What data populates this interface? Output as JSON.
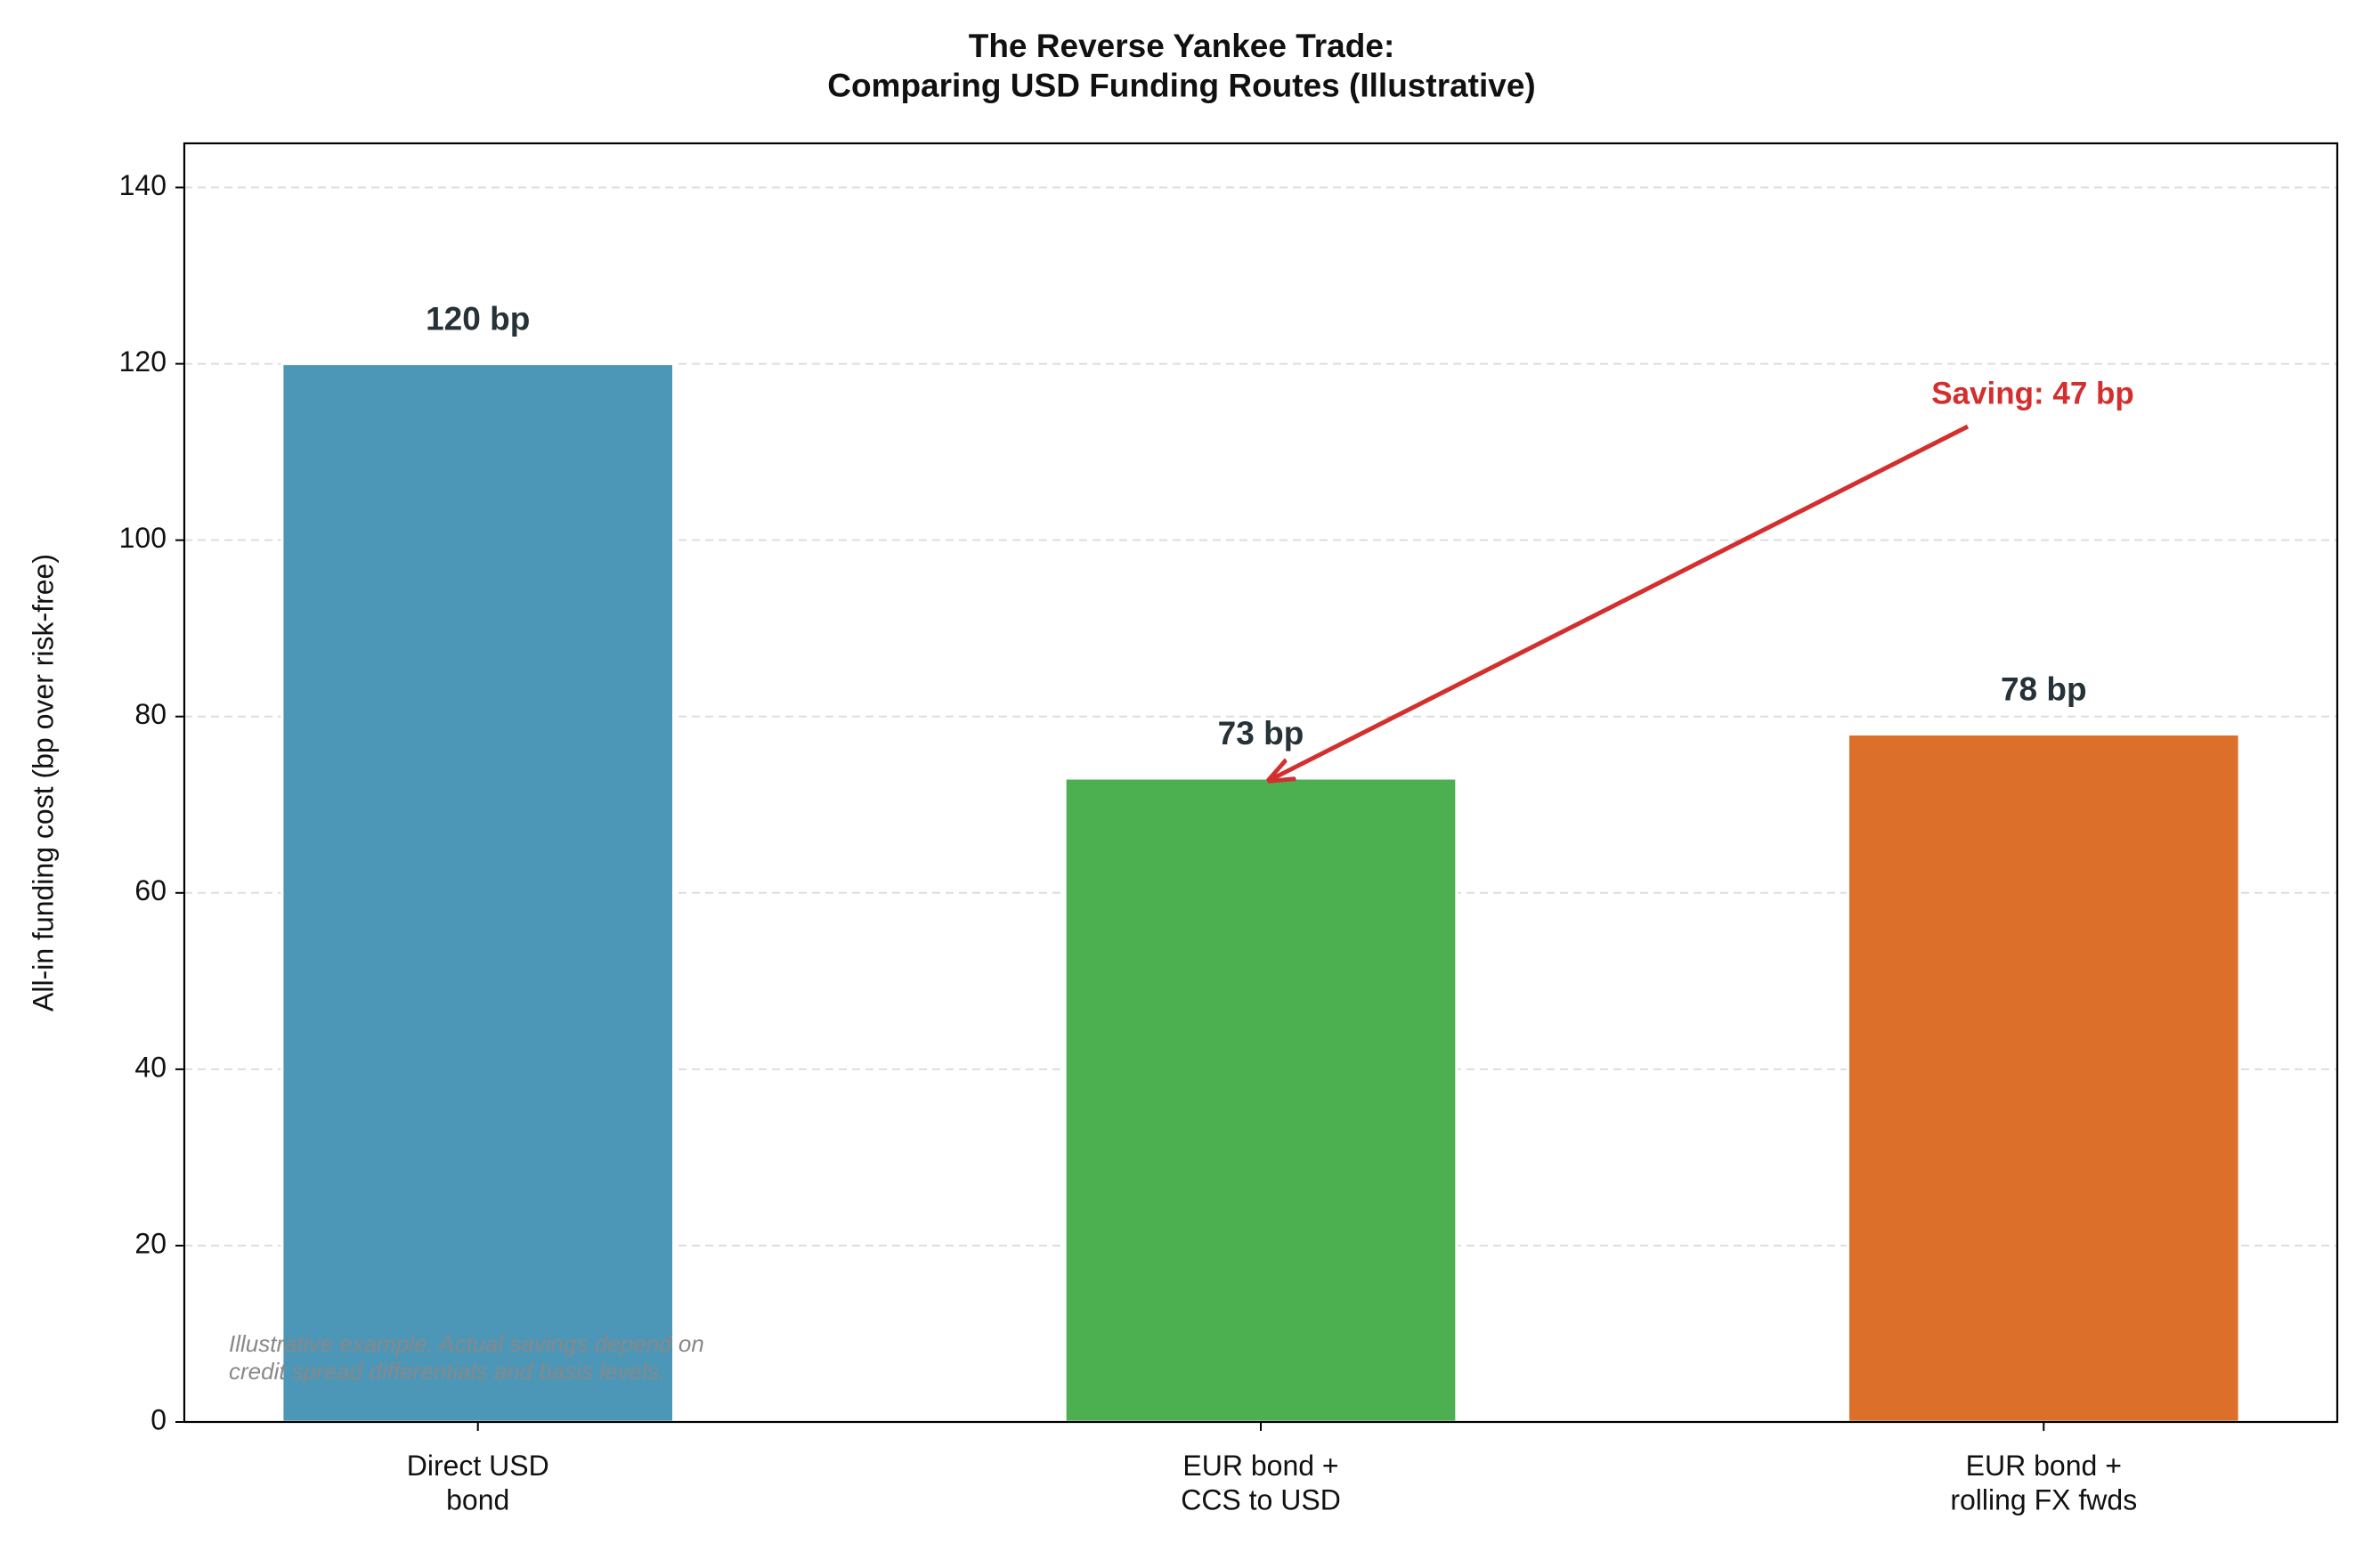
{
  "chart_data": {
    "type": "bar",
    "title": "The Reverse Yankee Trade:\nComparing USD Funding Routes (Illustrative)",
    "y_label": "All-in funding cost (bp over risk-free)",
    "categories": [
      "Direct USD\nbond",
      "EUR bond +\nCCS to USD",
      "EUR bond +\nrolling FX fwds"
    ],
    "values": [
      120,
      73,
      78
    ],
    "value_labels": [
      "120 bp",
      "73 bp",
      "78 bp"
    ],
    "colors": [
      "#4c97b8",
      "#4caf50",
      "#dc6f2a"
    ],
    "ylim": [
      0,
      145
    ],
    "yticks": [
      0,
      20,
      40,
      60,
      80,
      100,
      120,
      140
    ],
    "grid": true,
    "annotation": "Saving: 47 bp",
    "annotation_color": "#d32f2f",
    "footnote": "Illustrative example. Actual savings depend on\ncredit spread differentials and basis levels."
  }
}
